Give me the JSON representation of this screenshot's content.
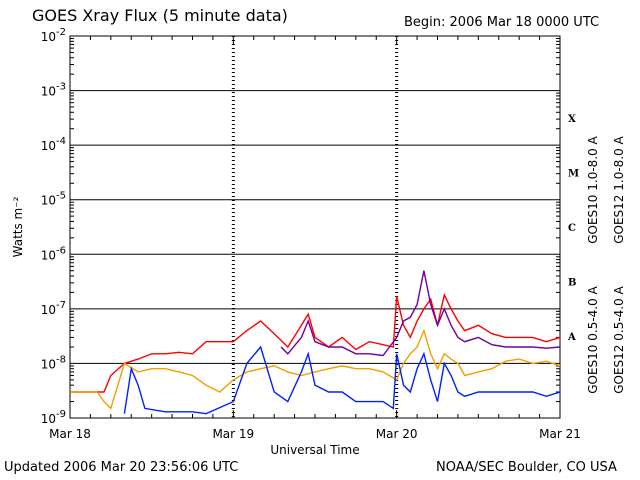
{
  "header": {
    "title": "GOES Xray Flux (5 minute data)",
    "begin": "Begin:  2006 Mar 18 0000 UTC"
  },
  "footer": {
    "updated": "Updated 2006 Mar 20 23:56:06 UTC",
    "credit": "NOAA/SEC Boulder, CO USA"
  },
  "chart_data": {
    "type": "line",
    "xlabel": "Universal Time",
    "ylabel": "Watts m⁻²",
    "yscale": "log",
    "ylim": [
      1e-09,
      0.01
    ],
    "xlim": [
      0,
      72
    ],
    "x_unit": "hours since 2006 Mar 18 0000 UTC",
    "x_ticks": [
      {
        "x": 0,
        "label": "Mar 18"
      },
      {
        "x": 24,
        "label": "Mar 19"
      },
      {
        "x": 48,
        "label": "Mar 20"
      },
      {
        "x": 72,
        "label": "Mar 21"
      }
    ],
    "y_ticks": [
      {
        "exp": -2,
        "label": "10",
        "sup": "-2"
      },
      {
        "exp": -3,
        "label": "10",
        "sup": "-3"
      },
      {
        "exp": -4,
        "label": "10",
        "sup": "-4"
      },
      {
        "exp": -5,
        "label": "10",
        "sup": "-5"
      },
      {
        "exp": -6,
        "label": "10",
        "sup": "-6"
      },
      {
        "exp": -7,
        "label": "10",
        "sup": "-7"
      },
      {
        "exp": -8,
        "label": "10",
        "sup": "-8"
      },
      {
        "exp": -9,
        "label": "10",
        "sup": "-9"
      }
    ],
    "flare_classes": [
      {
        "label": "X",
        "exp": -3.5
      },
      {
        "label": "M",
        "exp": -4.5
      },
      {
        "label": "C",
        "exp": -5.5
      },
      {
        "label": "B",
        "exp": -6.5
      },
      {
        "label": "A",
        "exp": -7.5
      }
    ],
    "grid": true,
    "legend_position": "right",
    "series": [
      {
        "name": "GOES12 1.0-8.0 A",
        "color": "#ff0000",
        "points": [
          [
            0,
            3e-09
          ],
          [
            5,
            3e-09
          ],
          [
            6,
            6e-09
          ],
          [
            8,
            1e-08
          ],
          [
            10,
            1.2e-08
          ],
          [
            12,
            1.5e-08
          ],
          [
            14,
            1.5e-08
          ],
          [
            16,
            1.6e-08
          ],
          [
            18,
            1.5e-08
          ],
          [
            20,
            2.5e-08
          ],
          [
            22,
            2.5e-08
          ],
          [
            24,
            2.5e-08
          ],
          [
            26,
            4e-08
          ],
          [
            28,
            6e-08
          ],
          [
            30,
            3.5e-08
          ],
          [
            32,
            2e-08
          ],
          [
            34,
            5e-08
          ],
          [
            35,
            8e-08
          ],
          [
            36,
            3e-08
          ],
          [
            38,
            2e-08
          ],
          [
            40,
            3e-08
          ],
          [
            42,
            1.8e-08
          ],
          [
            44,
            2.5e-08
          ],
          [
            46,
            2.2e-08
          ],
          [
            47.5,
            2e-08
          ],
          [
            48,
            1.7e-07
          ],
          [
            49,
            5e-08
          ],
          [
            50,
            3e-08
          ],
          [
            51,
            6e-08
          ],
          [
            52,
            1e-07
          ],
          [
            53,
            1.5e-07
          ],
          [
            54,
            5e-08
          ],
          [
            55,
            1.8e-07
          ],
          [
            56,
            1e-07
          ],
          [
            57,
            6e-08
          ],
          [
            58,
            4e-08
          ],
          [
            60,
            5e-08
          ],
          [
            62,
            3.5e-08
          ],
          [
            64,
            3e-08
          ],
          [
            66,
            3e-08
          ],
          [
            68,
            3e-08
          ],
          [
            70,
            2.5e-08
          ],
          [
            72,
            3e-08
          ]
        ]
      },
      {
        "name": "GOES10 1.0-8.0 A",
        "color": "#7000a0",
        "points": [
          [
            31,
            2e-08
          ],
          [
            32,
            1.5e-08
          ],
          [
            34,
            3e-08
          ],
          [
            35,
            6e-08
          ],
          [
            36,
            2.5e-08
          ],
          [
            38,
            2e-08
          ],
          [
            40,
            2e-08
          ],
          [
            42,
            1.5e-08
          ],
          [
            44,
            1.5e-08
          ],
          [
            46,
            1.4e-08
          ],
          [
            48,
            3e-08
          ],
          [
            49,
            6e-08
          ],
          [
            50,
            7e-08
          ],
          [
            51,
            1.2e-07
          ],
          [
            52,
            5e-07
          ],
          [
            53,
            1.2e-07
          ],
          [
            54,
            5e-08
          ],
          [
            55,
            1e-07
          ],
          [
            56,
            5e-08
          ],
          [
            57,
            3e-08
          ],
          [
            58,
            2.5e-08
          ],
          [
            60,
            3e-08
          ],
          [
            62,
            2.2e-08
          ],
          [
            64,
            2e-08
          ],
          [
            66,
            2e-08
          ],
          [
            68,
            2e-08
          ],
          [
            70,
            1.9e-08
          ],
          [
            72,
            2e-08
          ]
        ]
      },
      {
        "name": "GOES10 0.5-4.0 A",
        "color": "#f0a000",
        "points": [
          [
            0,
            3e-09
          ],
          [
            4,
            3e-09
          ],
          [
            5,
            2e-09
          ],
          [
            6,
            1.5e-09
          ],
          [
            8,
            1e-08
          ],
          [
            10,
            7e-09
          ],
          [
            12,
            8e-09
          ],
          [
            14,
            8e-09
          ],
          [
            16,
            7e-09
          ],
          [
            18,
            6e-09
          ],
          [
            20,
            4e-09
          ],
          [
            22,
            3e-09
          ],
          [
            24,
            5e-09
          ],
          [
            26,
            7e-09
          ],
          [
            28,
            8e-09
          ],
          [
            30,
            9e-09
          ],
          [
            32,
            7e-09
          ],
          [
            34,
            6e-09
          ],
          [
            36,
            7e-09
          ],
          [
            38,
            8e-09
          ],
          [
            40,
            9e-09
          ],
          [
            42,
            8e-09
          ],
          [
            44,
            8e-09
          ],
          [
            46,
            7e-09
          ],
          [
            48,
            5e-09
          ],
          [
            49,
            1e-08
          ],
          [
            50,
            1.5e-08
          ],
          [
            51,
            2e-08
          ],
          [
            52,
            4e-08
          ],
          [
            53,
            1.5e-08
          ],
          [
            54,
            8e-09
          ],
          [
            55,
            1.5e-08
          ],
          [
            56,
            1.2e-08
          ],
          [
            57,
            1e-08
          ],
          [
            58,
            6e-09
          ],
          [
            60,
            7e-09
          ],
          [
            62,
            8e-09
          ],
          [
            64,
            1.1e-08
          ],
          [
            66,
            1.2e-08
          ],
          [
            68,
            1e-08
          ],
          [
            70,
            1.1e-08
          ],
          [
            72,
            9e-09
          ]
        ]
      },
      {
        "name": "GOES12 0.5-4.0 A",
        "color": "#0020ff",
        "points": [
          [
            8,
            1.2e-09
          ],
          [
            9,
            8e-09
          ],
          [
            10,
            4e-09
          ],
          [
            11,
            1.5e-09
          ],
          [
            14,
            1.3e-09
          ],
          [
            18,
            1.3e-09
          ],
          [
            20,
            1.2e-09
          ],
          [
            24,
            2e-09
          ],
          [
            26,
            1e-08
          ],
          [
            28,
            2e-08
          ],
          [
            30,
            3e-09
          ],
          [
            32,
            2e-09
          ],
          [
            34,
            7e-09
          ],
          [
            35,
            1.5e-08
          ],
          [
            36,
            4e-09
          ],
          [
            38,
            3e-09
          ],
          [
            40,
            3e-09
          ],
          [
            42,
            2e-09
          ],
          [
            44,
            2e-09
          ],
          [
            46,
            2e-09
          ],
          [
            47.5,
            1.5e-09
          ],
          [
            48,
            1.5e-08
          ],
          [
            49,
            4e-09
          ],
          [
            50,
            3e-09
          ],
          [
            51,
            8e-09
          ],
          [
            52,
            1.5e-08
          ],
          [
            53,
            5e-09
          ],
          [
            54,
            2e-09
          ],
          [
            55,
            1e-08
          ],
          [
            56,
            6e-09
          ],
          [
            57,
            3e-09
          ],
          [
            58,
            2.5e-09
          ],
          [
            60,
            3e-09
          ],
          [
            62,
            3e-09
          ],
          [
            64,
            3e-09
          ],
          [
            66,
            3e-09
          ],
          [
            68,
            3e-09
          ],
          [
            70,
            2.5e-09
          ],
          [
            72,
            3e-09
          ]
        ]
      }
    ]
  }
}
